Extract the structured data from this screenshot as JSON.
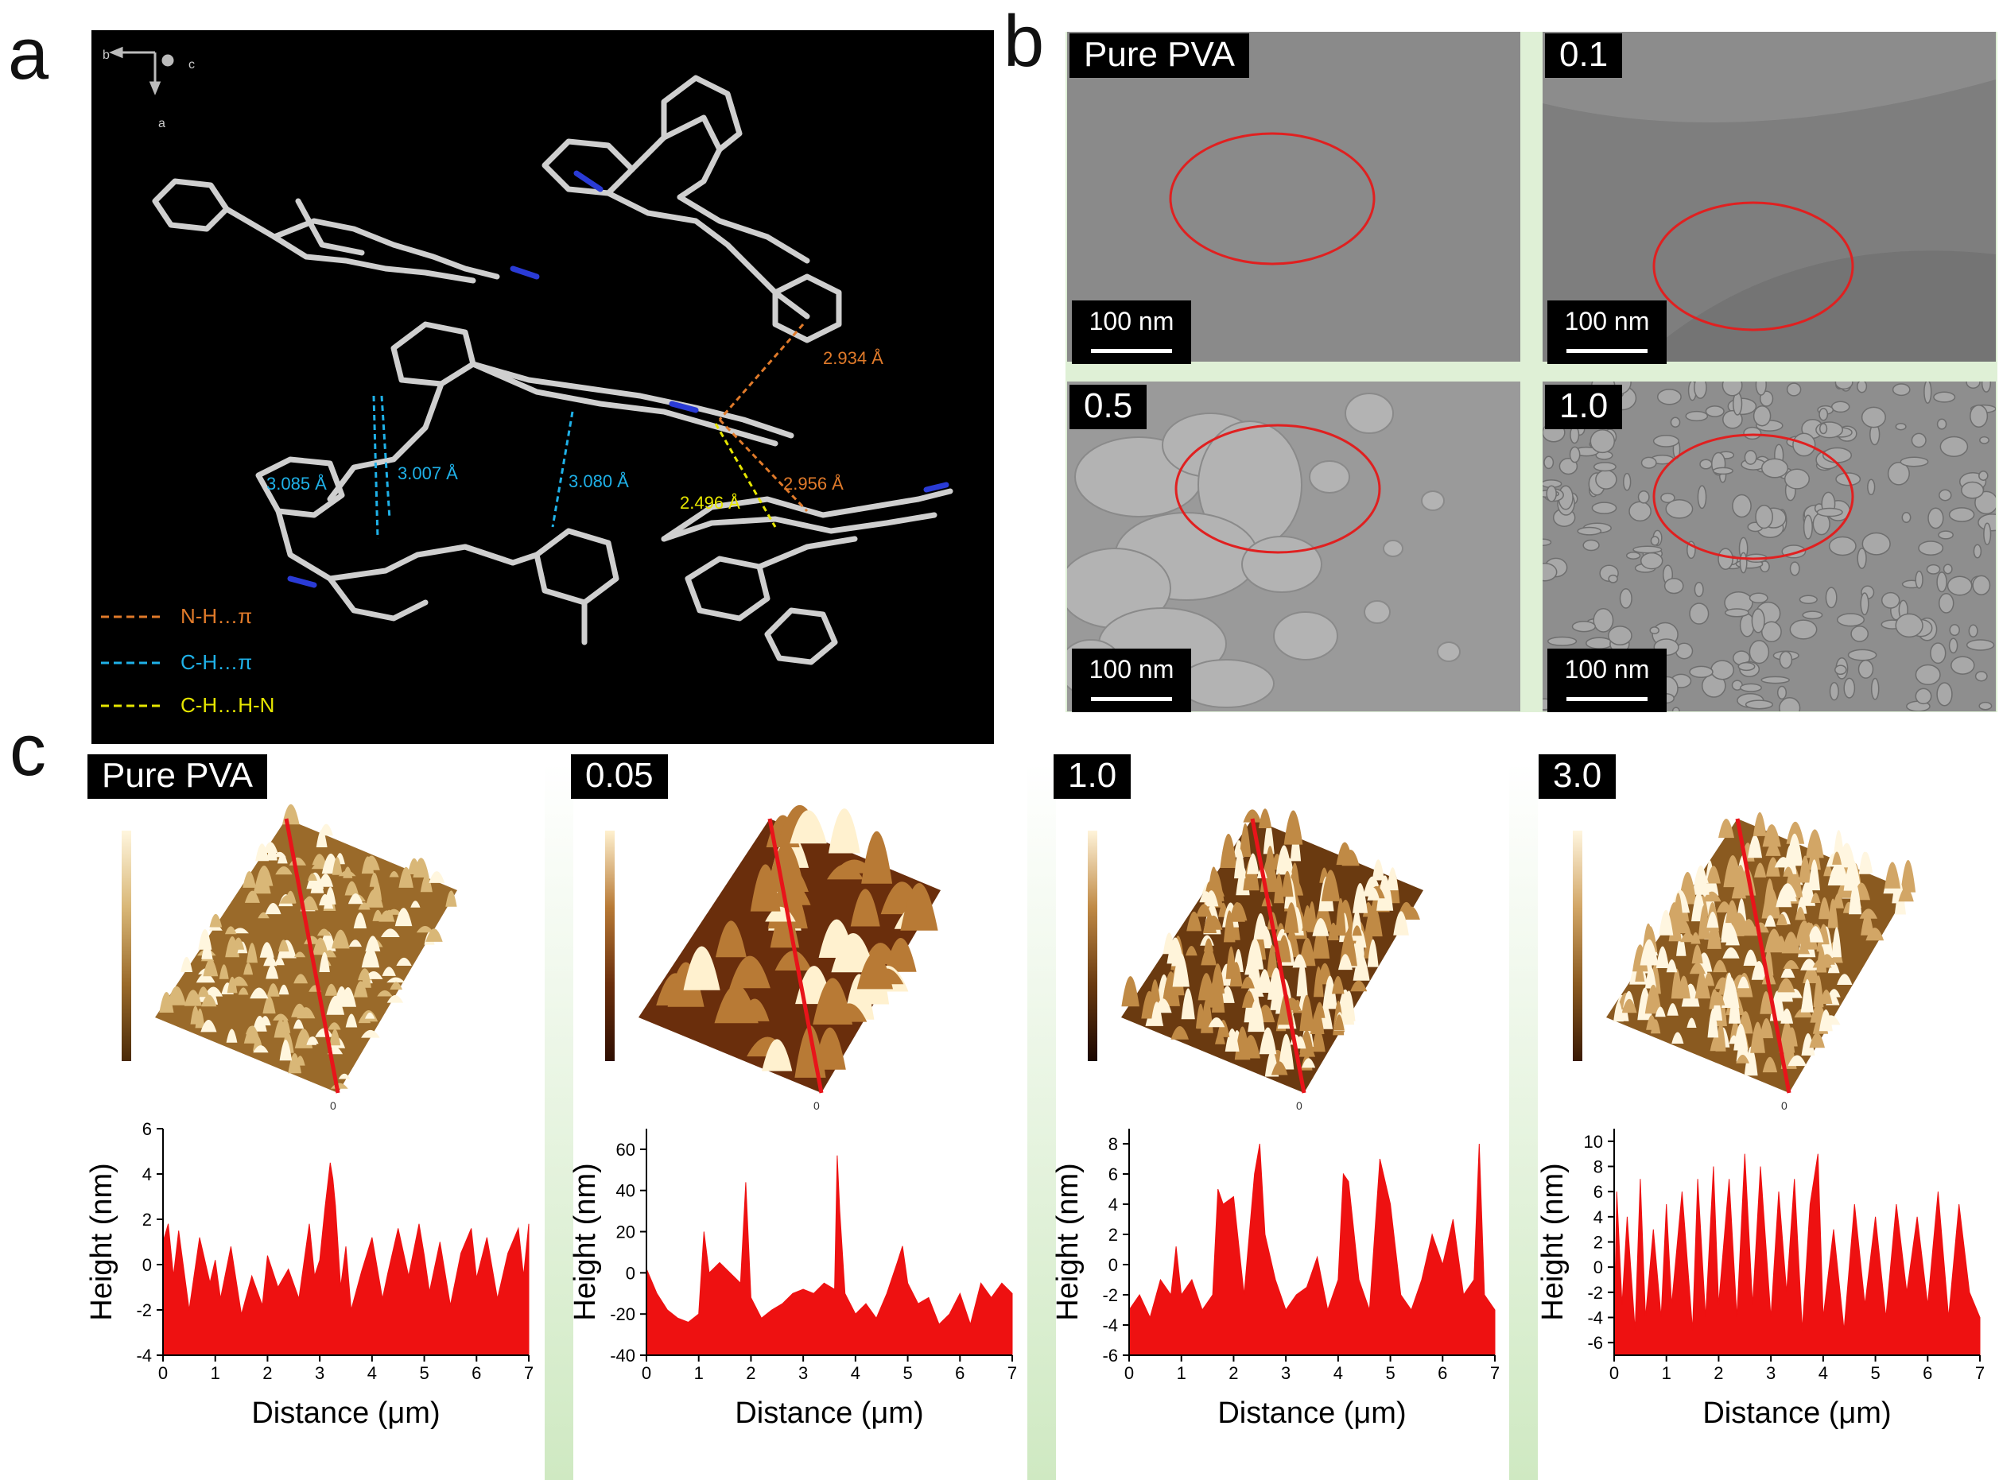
{
  "panels": {
    "a": "a",
    "b": "b",
    "c": "c"
  },
  "panel_a": {
    "axes": {
      "b": "b",
      "c": "c",
      "a": "a"
    },
    "distances": [
      "2.934 Å",
      "2.956 Å",
      "3.085 Å",
      "3.007 Å",
      "3.080 Å",
      "2.496 Å"
    ],
    "legend": [
      {
        "label": "N-H…π",
        "color": "#e07a2a"
      },
      {
        "label": "C-H…π",
        "color": "#1fb1e8"
      },
      {
        "label": "C-H…H-N",
        "color": "#e6e600"
      }
    ]
  },
  "panel_b": {
    "images": [
      {
        "tag": "Pure PVA",
        "scale": "100 nm"
      },
      {
        "tag": "0.1",
        "scale": "100 nm"
      },
      {
        "tag": "0.5",
        "scale": "100 nm"
      },
      {
        "tag": "1.0",
        "scale": "100 nm"
      }
    ]
  },
  "panel_c": {
    "afm_tags": [
      "Pure PVA",
      "0.05",
      "1.0",
      "3.0"
    ],
    "xlabel": "Distance (μm)",
    "ylabel": "Height (nm)"
  },
  "chart_data": [
    {
      "type": "area",
      "title": "",
      "series_name": "Pure PVA",
      "xlabel": "Distance (μm)",
      "ylabel": "Height (nm)",
      "xlim": [
        0,
        7
      ],
      "ylim": [
        -4,
        6
      ],
      "xticks": [
        0,
        1,
        2,
        3,
        4,
        5,
        6,
        7
      ],
      "yticks": [
        -4,
        -2,
        0,
        2,
        4,
        6
      ],
      "x": [
        0,
        0.1,
        0.2,
        0.3,
        0.5,
        0.7,
        0.9,
        1.0,
        1.1,
        1.3,
        1.5,
        1.7,
        1.9,
        2.0,
        2.2,
        2.4,
        2.6,
        2.8,
        2.9,
        3.0,
        3.1,
        3.2,
        3.25,
        3.3,
        3.4,
        3.5,
        3.6,
        3.8,
        4.0,
        4.2,
        4.3,
        4.5,
        4.7,
        4.9,
        5.0,
        5.1,
        5.3,
        5.5,
        5.7,
        5.9,
        6.0,
        6.2,
        6.4,
        6.6,
        6.8,
        6.9,
        7.0
      ],
      "y": [
        1.0,
        1.8,
        -0.5,
        1.5,
        -2.0,
        1.2,
        -0.8,
        0.2,
        -1.5,
        0.8,
        -2.2,
        -0.5,
        -1.8,
        0.4,
        -1.0,
        -0.2,
        -1.5,
        1.8,
        -0.5,
        0.2,
        2.5,
        4.5,
        3.8,
        2.6,
        -1.0,
        0.8,
        -2.0,
        -0.3,
        1.2,
        -1.5,
        -0.4,
        1.6,
        -0.5,
        1.8,
        0.4,
        -1.2,
        1.0,
        -1.8,
        0.5,
        1.6,
        -0.6,
        1.2,
        -1.5,
        0.5,
        1.6,
        -0.5,
        1.8
      ]
    },
    {
      "type": "area",
      "title": "",
      "series_name": "0.05",
      "xlabel": "Distance (μm)",
      "ylabel": "Height (nm)",
      "xlim": [
        0,
        7
      ],
      "ylim": [
        -40,
        70
      ],
      "xticks": [
        0,
        1,
        2,
        3,
        4,
        5,
        6,
        7
      ],
      "yticks": [
        -40,
        -20,
        0,
        20,
        40,
        60
      ],
      "x": [
        0,
        0.2,
        0.4,
        0.6,
        0.8,
        1.0,
        1.1,
        1.2,
        1.4,
        1.6,
        1.8,
        1.9,
        2.0,
        2.2,
        2.4,
        2.6,
        2.8,
        3.0,
        3.2,
        3.4,
        3.6,
        3.65,
        3.7,
        3.8,
        4.0,
        4.2,
        4.4,
        4.6,
        4.8,
        4.9,
        5.0,
        5.2,
        5.4,
        5.6,
        5.8,
        6.0,
        6.2,
        6.4,
        6.6,
        6.8,
        7.0
      ],
      "y": [
        2,
        -10,
        -18,
        -22,
        -24,
        -20,
        20,
        0,
        5,
        0,
        -5,
        44,
        -12,
        -22,
        -18,
        -15,
        -10,
        -8,
        -10,
        -5,
        -8,
        57,
        30,
        -10,
        -20,
        -15,
        -22,
        -10,
        5,
        13,
        -5,
        -15,
        -12,
        -25,
        -20,
        -10,
        -25,
        -5,
        -12,
        -5,
        -10
      ]
    },
    {
      "type": "area",
      "title": "",
      "series_name": "1.0",
      "xlabel": "Distance (μm)",
      "ylabel": "Height (nm)",
      "xlim": [
        0,
        7
      ],
      "ylim": [
        -6,
        9
      ],
      "xticks": [
        0,
        1,
        2,
        3,
        4,
        5,
        6,
        7
      ],
      "yticks": [
        -6,
        -4,
        -2,
        0,
        2,
        4,
        6,
        8
      ],
      "x": [
        0,
        0.2,
        0.4,
        0.6,
        0.8,
        0.9,
        1.0,
        1.2,
        1.4,
        1.6,
        1.7,
        1.8,
        2.0,
        2.2,
        2.4,
        2.5,
        2.6,
        2.8,
        3.0,
        3.2,
        3.4,
        3.6,
        3.8,
        4.0,
        4.1,
        4.2,
        4.4,
        4.6,
        4.8,
        5.0,
        5.2,
        5.4,
        5.6,
        5.8,
        6.0,
        6.2,
        6.4,
        6.6,
        6.7,
        6.8,
        7.0
      ],
      "y": [
        -3,
        -2,
        -3.5,
        -1,
        -2,
        1.2,
        -2,
        -1,
        -3,
        -2,
        5,
        4,
        4.5,
        -2,
        6,
        8,
        2,
        -1,
        -3,
        -2,
        -1.5,
        0.5,
        -3,
        -1,
        6,
        5.5,
        -1,
        -3,
        7,
        4,
        -2,
        -3,
        -1,
        2,
        0,
        3,
        -2,
        -1,
        8,
        -2,
        -3
      ]
    },
    {
      "type": "area",
      "title": "",
      "series_name": "3.0",
      "xlabel": "Distance (μm)",
      "ylabel": "Height (nm)",
      "xlim": [
        0,
        7
      ],
      "ylim": [
        -7,
        11
      ],
      "xticks": [
        0,
        1,
        2,
        3,
        4,
        5,
        6,
        7
      ],
      "yticks": [
        -6,
        -4,
        -2,
        0,
        2,
        4,
        6,
        8,
        10
      ],
      "x": [
        0,
        0.05,
        0.15,
        0.25,
        0.4,
        0.5,
        0.6,
        0.75,
        0.9,
        1.0,
        1.1,
        1.3,
        1.5,
        1.6,
        1.75,
        1.9,
        2.0,
        2.2,
        2.35,
        2.5,
        2.65,
        2.8,
        3.0,
        3.15,
        3.3,
        3.45,
        3.6,
        3.75,
        3.9,
        4.0,
        4.2,
        4.4,
        4.6,
        4.8,
        5.0,
        5.2,
        5.4,
        5.6,
        5.8,
        6.0,
        6.2,
        6.4,
        6.6,
        6.8,
        7.0
      ],
      "y": [
        -5,
        6,
        -3,
        4,
        -5,
        7,
        -4,
        3,
        -4,
        5,
        -3,
        6,
        -5,
        7,
        -4,
        8,
        -3,
        7,
        -4,
        9,
        -3,
        8,
        -4,
        6,
        -2,
        7,
        -5,
        5,
        9,
        -4,
        3,
        -5,
        5,
        -3,
        4,
        -4,
        5,
        -2,
        4,
        -3,
        6,
        -4,
        5,
        -2,
        -4
      ]
    }
  ]
}
